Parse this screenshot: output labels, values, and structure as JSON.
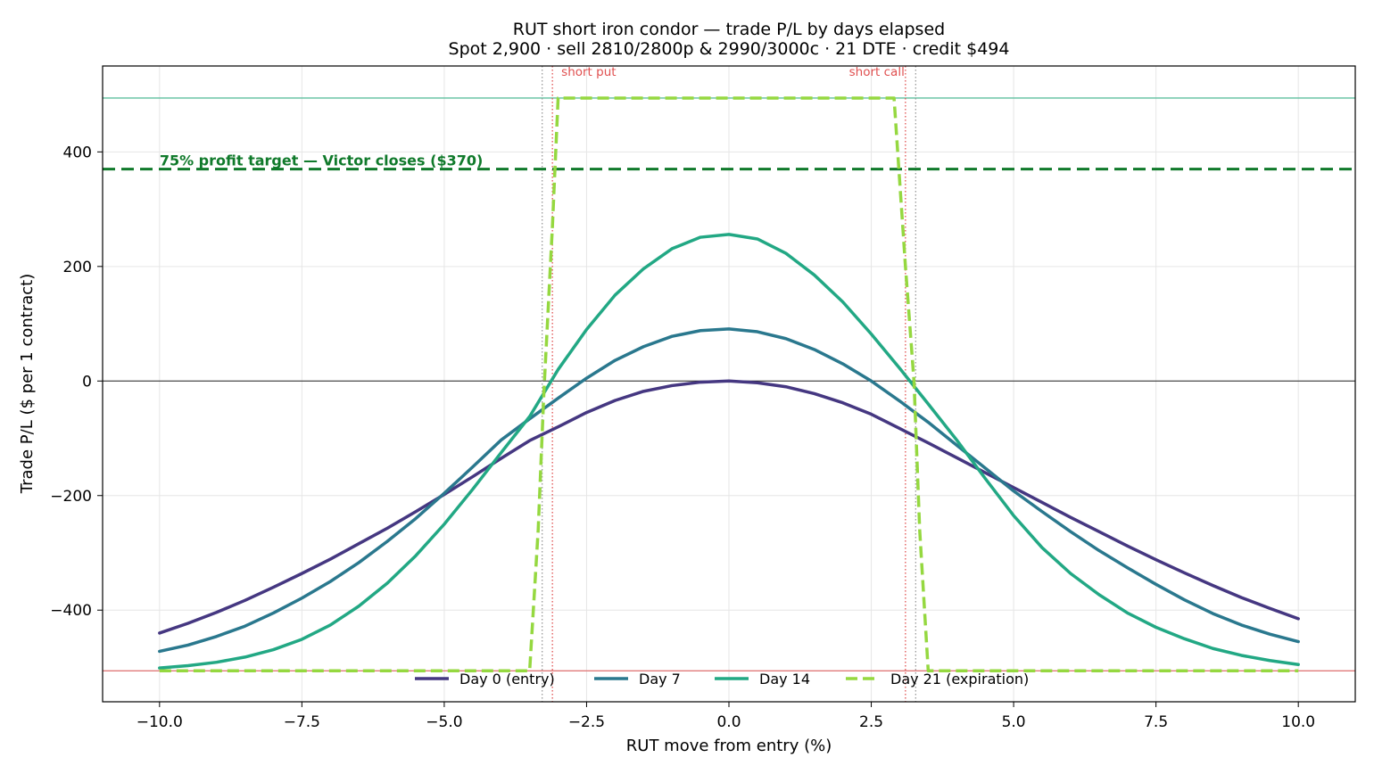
{
  "chart_data": {
    "type": "line",
    "title": "RUT short iron condor — trade P/L by days elapsed",
    "subtitle": "Spot 2,900 · sell 2810/2800p & 2990/3000c · 21 DTE · credit $494",
    "xlabel": "RUT move from entry (%)",
    "ylabel": "Trade P/L ($ per 1 contract)",
    "xlim": [
      -11,
      11
    ],
    "ylim": [
      -560,
      550
    ],
    "xticks": [
      -10,
      -7.5,
      -5,
      -2.5,
      0,
      2.5,
      5,
      7.5,
      10
    ],
    "xtick_labels": [
      "−10.0",
      "−7.5",
      "−5.0",
      "−2.5",
      "0.0",
      "2.5",
      "5.0",
      "7.5",
      "10.0"
    ],
    "yticks": [
      -400,
      -200,
      0,
      200,
      400
    ],
    "ytick_labels": [
      "−400",
      "−200",
      "0",
      "200",
      "400"
    ],
    "grid": true,
    "legend_position": "bottom-center",
    "series": [
      {
        "name": "Day 0 (entry)",
        "color": "#453781",
        "dash": false,
        "x": [
          -10,
          -9.5,
          -9,
          -8.5,
          -8,
          -7.5,
          -7,
          -6.5,
          -6,
          -5.5,
          -5,
          -4.5,
          -4,
          -3.5,
          -3,
          -2.5,
          -2,
          -1.5,
          -1,
          -0.5,
          0,
          0.5,
          1,
          1.5,
          2,
          2.5,
          3,
          3.5,
          4,
          4.5,
          5,
          5.5,
          6,
          6.5,
          7,
          7.5,
          8,
          8.5,
          9,
          9.5,
          10
        ],
        "y": [
          -440,
          -423,
          -404,
          -383,
          -360,
          -336,
          -311,
          -284,
          -257,
          -228,
          -198,
          -167,
          -135,
          -104,
          -80,
          -55,
          -34,
          -18,
          -8,
          -2,
          0,
          -3,
          -10,
          -22,
          -38,
          -58,
          -83,
          -108,
          -134,
          -160,
          -186,
          -212,
          -238,
          -263,
          -288,
          -312,
          -335,
          -357,
          -378,
          -397,
          -415
        ]
      },
      {
        "name": "Day 7",
        "color": "#2a788e",
        "dash": false,
        "x": [
          -10,
          -9.5,
          -9,
          -8.5,
          -8,
          -7.5,
          -7,
          -6.5,
          -6,
          -5.5,
          -5,
          -4.5,
          -4,
          -3.5,
          -3,
          -2.5,
          -2,
          -1.5,
          -1,
          -0.5,
          0,
          0.5,
          1,
          1.5,
          2,
          2.5,
          3,
          3.5,
          4,
          4.5,
          5,
          5.5,
          6,
          6.5,
          7,
          7.5,
          8,
          8.5,
          9,
          9.5,
          10
        ],
        "y": [
          -472,
          -461,
          -446,
          -428,
          -405,
          -379,
          -350,
          -317,
          -280,
          -240,
          -196,
          -150,
          -103,
          -66,
          -30,
          5,
          36,
          60,
          78,
          88,
          91,
          86,
          74,
          55,
          30,
          0,
          -35,
          -72,
          -112,
          -152,
          -192,
          -228,
          -263,
          -296,
          -326,
          -355,
          -382,
          -406,
          -426,
          -442,
          -455
        ]
      },
      {
        "name": "Day 14",
        "color": "#22a884",
        "dash": false,
        "x": [
          -10,
          -9.5,
          -9,
          -8.5,
          -8,
          -7.5,
          -7,
          -6.5,
          -6,
          -5.5,
          -5,
          -4.5,
          -4,
          -3.5,
          -3,
          -2.5,
          -2,
          -1.5,
          -1,
          -0.5,
          0,
          0.5,
          1,
          1.5,
          2,
          2.5,
          3,
          3.5,
          4,
          4.5,
          5,
          5.5,
          6,
          6.5,
          7,
          7.5,
          8,
          8.5,
          9,
          9.5,
          10
        ],
        "y": [
          -501,
          -497,
          -491,
          -482,
          -469,
          -451,
          -426,
          -393,
          -353,
          -305,
          -250,
          -189,
          -125,
          -62,
          20,
          90,
          150,
          196,
          231,
          251,
          256,
          248,
          223,
          185,
          138,
          82,
          22,
          -40,
          -103,
          -170,
          -235,
          -291,
          -336,
          -373,
          -405,
          -430,
          -450,
          -467,
          -479,
          -488,
          -495
        ]
      },
      {
        "name": "Day 21 (expiration)",
        "color": "#95d840",
        "dash": true,
        "x": [
          -10,
          -3.5,
          -3.35,
          -3.25,
          -3.1,
          -3.0,
          -2.5,
          2.5,
          2.9,
          3.1,
          3.25,
          3.35,
          3.5,
          10
        ],
        "y": [
          -506,
          -506,
          -260,
          -20,
          270,
          494,
          494,
          494,
          494,
          200,
          0,
          -260,
          -506,
          -506
        ]
      }
    ],
    "reference_lines": {
      "credit": 494,
      "max_loss": -506,
      "zero": 0,
      "short_put_pct": -3.1,
      "long_put_pct": -3.28,
      "short_call_pct": 3.1,
      "long_call_pct": 3.28
    },
    "profit_target": {
      "value": 370,
      "label": "75% profit target — Victor closes  ($370)",
      "color": "#107a2b"
    },
    "annotations": {
      "short_put": "short put",
      "short_call": "short call"
    },
    "colors": {
      "credit_line": "#5fbf9f",
      "max_loss_line": "#e07a7a",
      "short_strike": "#e05050",
      "long_strike": "#999999"
    }
  }
}
